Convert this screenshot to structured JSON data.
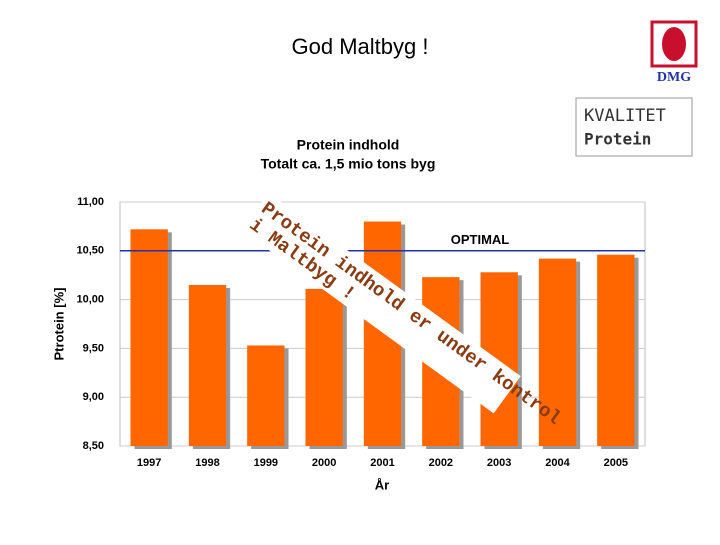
{
  "slide": {
    "title": "God Maltbyg !",
    "logo": "DMG",
    "box": [
      "KVALITET",
      "Protein"
    ],
    "overlay": [
      "Protein indhold er under kontrol",
      "i Maltbyg !"
    ]
  },
  "chart_data": {
    "type": "bar",
    "title": "Protein indhold",
    "subtitle": "Totalt ca. 1,5 mio tons byg",
    "x_label": "År",
    "y_label": "Ptrotein [%]",
    "categories": [
      "1997",
      "1998",
      "1999",
      "2000",
      "2001",
      "2002",
      "2003",
      "2004",
      "2005"
    ],
    "values": [
      10.72,
      10.15,
      9.53,
      10.11,
      10.8,
      10.23,
      10.28,
      10.42,
      10.46
    ],
    "color": "#ff6600",
    "ylim": [
      8.5,
      11
    ],
    "yticks": [
      {
        "value": 8.5,
        "label": "8,50"
      },
      {
        "value": 9,
        "label": "9,00"
      },
      {
        "value": 9.5,
        "label": "9,50"
      },
      {
        "value": 10,
        "label": "10,00"
      },
      {
        "value": 10.5,
        "label": "10,50"
      },
      {
        "value": 11,
        "label": "11,00"
      }
    ],
    "grid": true,
    "reference_line": {
      "value": 10.5,
      "label": "OPTIMAL",
      "color": "#2233aa"
    }
  }
}
